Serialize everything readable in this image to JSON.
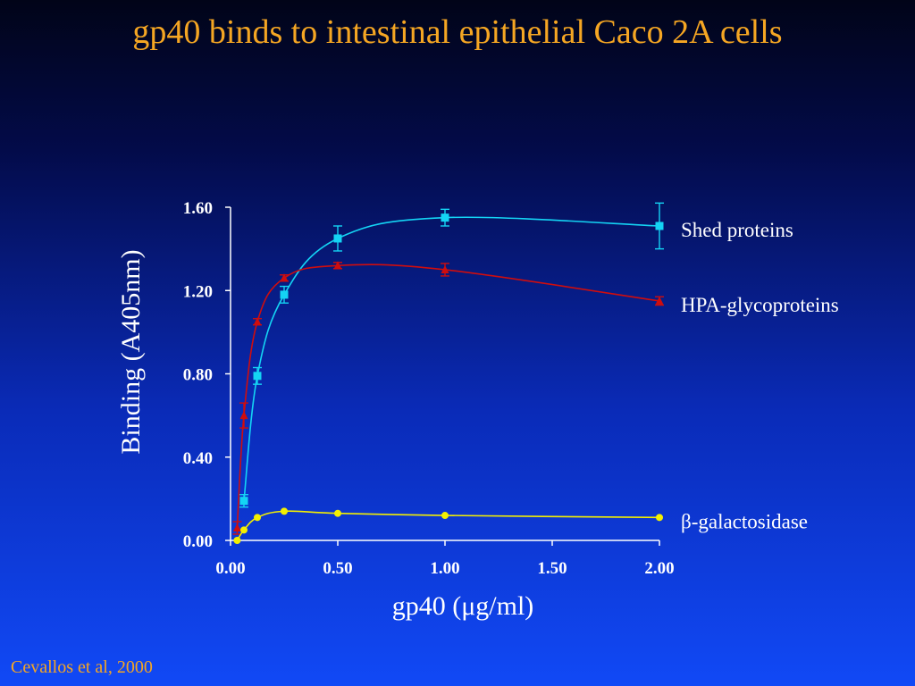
{
  "slide": {
    "title": "gp40 binds to intestinal epithelial Caco 2A cells",
    "citation": "Cevallos et al, 2000"
  },
  "colors": {
    "title": "#f5a623",
    "axis": "#ffffff",
    "shed": "#14d4f4",
    "hpa": "#d00d0d",
    "beta": "#f4f000"
  },
  "chart_data": {
    "type": "line",
    "xlabel": "gp40 (μg/ml)",
    "ylabel": "Binding (A405nm)",
    "xlim": [
      0,
      2
    ],
    "ylim": [
      0,
      1.6
    ],
    "x_ticks": [
      "0.00",
      "0.50",
      "1.00",
      "1.50",
      "2.00"
    ],
    "y_ticks": [
      "0.00",
      "0.40",
      "0.80",
      "1.20",
      "1.60"
    ],
    "grid": false,
    "legend": "labels at right end of each series",
    "series": [
      {
        "name": "Shed proteins",
        "marker": "square",
        "color": "#14d4f4",
        "x": [
          0.0625,
          0.125,
          0.25,
          0.5,
          1.0,
          2.0
        ],
        "y": [
          0.19,
          0.79,
          1.18,
          1.45,
          1.55,
          1.51
        ],
        "error": [
          0.03,
          0.04,
          0.04,
          0.06,
          0.04,
          0.11
        ]
      },
      {
        "name": "HPA-glycoproteins",
        "marker": "triangle",
        "color": "#d00d0d",
        "x": [
          0.031,
          0.0625,
          0.125,
          0.25,
          0.5,
          1.0,
          2.0
        ],
        "y": [
          0.06,
          0.6,
          1.05,
          1.26,
          1.32,
          1.3,
          1.15
        ],
        "error": [
          0.03,
          0.06,
          0.015,
          0.015,
          0.015,
          0.03,
          0.02
        ]
      },
      {
        "name": "β-galactosidase",
        "marker": "circle",
        "color": "#f4f000",
        "x": [
          0.031,
          0.0625,
          0.125,
          0.25,
          0.5,
          1.0,
          2.0
        ],
        "y": [
          0.0,
          0.05,
          0.11,
          0.14,
          0.13,
          0.12,
          0.11
        ],
        "error": [
          0,
          0,
          0,
          0,
          0,
          0,
          0
        ]
      }
    ]
  }
}
